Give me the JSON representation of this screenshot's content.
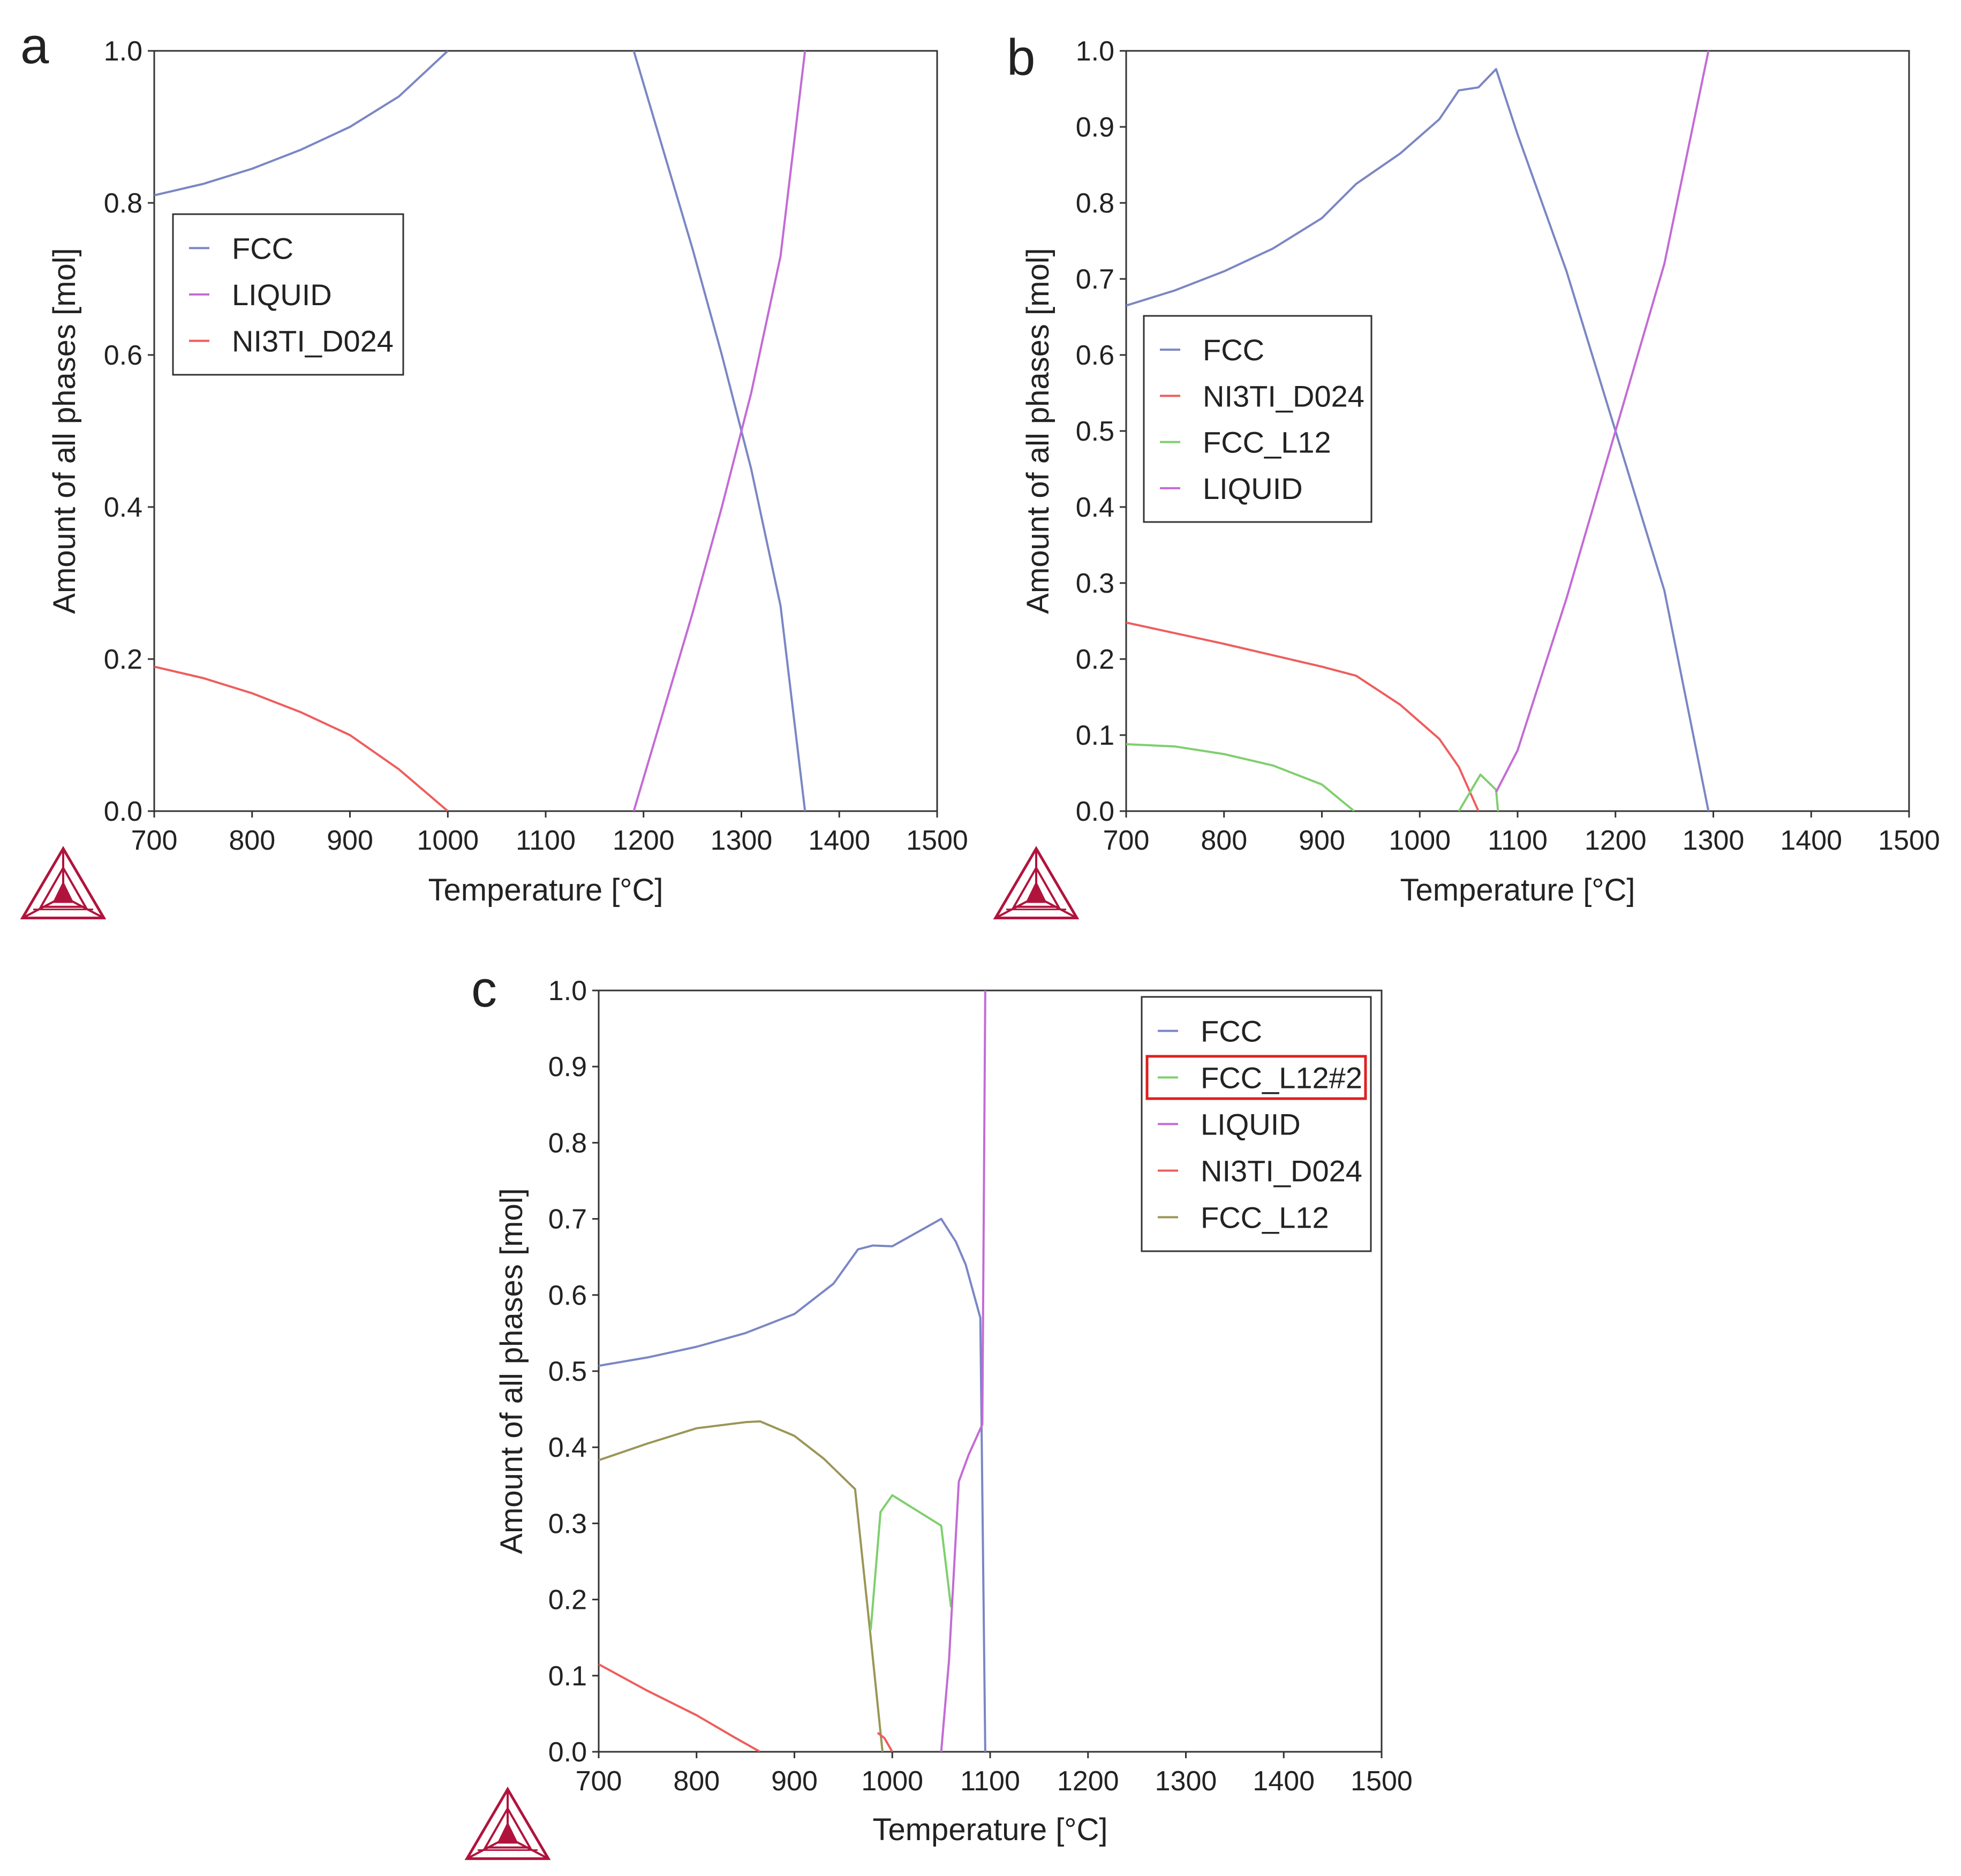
{
  "colors": {
    "FCC": "#7a86c4",
    "LIQUID": "#c36bd6",
    "NI3TI_D024": "#ee5d5d",
    "FCC_L12": "#7fcf6e",
    "FCC_L12_c": "#9a9656",
    "FCC_L12#2": "#7fcf6e",
    "axis": "#333333",
    "highlight": "#e02020",
    "logo": "#b0143c"
  },
  "chart_data": [
    {
      "panel": "a",
      "type": "line",
      "xlabel": "Temperature [°C]",
      "ylabel": "Amount of all phases [mol]",
      "xlim": [
        700,
        1500
      ],
      "ylim": [
        0,
        1.0
      ],
      "xticks": [
        "700",
        "800",
        "900",
        "1000",
        "1100",
        "1200",
        "1300",
        "1400",
        "1500"
      ],
      "yticks": [
        "0.0",
        "0.2",
        "0.4",
        "0.6",
        "0.8",
        "1.0"
      ],
      "legend": {
        "position": "left-middle",
        "entries": [
          "FCC",
          "LIQUID",
          "NI3TI_D024"
        ]
      },
      "series": [
        {
          "name": "FCC",
          "points": [
            [
              700,
              0.81
            ],
            [
              750,
              0.825
            ],
            [
              800,
              0.845
            ],
            [
              850,
              0.87
            ],
            [
              900,
              0.9
            ],
            [
              950,
              0.94
            ],
            [
              1000,
              1.0
            ]
          ]
        },
        {
          "name": "FCC",
          "points": [
            [
              1190,
              1.0
            ],
            [
              1220,
              0.87
            ],
            [
              1250,
              0.74
            ],
            [
              1280,
              0.6
            ],
            [
              1310,
              0.45
            ],
            [
              1340,
              0.27
            ],
            [
              1365,
              0.0
            ]
          ]
        },
        {
          "name": "LIQUID",
          "points": [
            [
              1190,
              0.0
            ],
            [
              1220,
              0.13
            ],
            [
              1250,
              0.26
            ],
            [
              1280,
              0.4
            ],
            [
              1310,
              0.55
            ],
            [
              1340,
              0.73
            ],
            [
              1365,
              1.0
            ]
          ]
        },
        {
          "name": "NI3TI_D024",
          "points": [
            [
              700,
              0.19
            ],
            [
              750,
              0.175
            ],
            [
              800,
              0.155
            ],
            [
              850,
              0.13
            ],
            [
              900,
              0.1
            ],
            [
              950,
              0.055
            ],
            [
              1000,
              0.0
            ]
          ]
        }
      ]
    },
    {
      "panel": "b",
      "type": "line",
      "xlabel": "Temperature [°C]",
      "ylabel": "Amount of all phases [mol]",
      "xlim": [
        700,
        1500
      ],
      "ylim": [
        0,
        1.0
      ],
      "xticks": [
        "700",
        "800",
        "900",
        "1000",
        "1100",
        "1200",
        "1300",
        "1400",
        "1500"
      ],
      "yticks": [
        "0.0",
        "0.1",
        "0.2",
        "0.3",
        "0.4",
        "0.5",
        "0.6",
        "0.7",
        "0.8",
        "0.9",
        "1.0"
      ],
      "legend": {
        "position": "left-middle",
        "entries": [
          "FCC",
          "NI3TI_D024",
          "FCC_L12",
          "LIQUID"
        ]
      },
      "series": [
        {
          "name": "FCC",
          "points": [
            [
              700,
              0.665
            ],
            [
              750,
              0.685
            ],
            [
              800,
              0.71
            ],
            [
              850,
              0.74
            ],
            [
              900,
              0.78
            ],
            [
              935,
              0.825
            ],
            [
              980,
              0.865
            ],
            [
              1020,
              0.91
            ],
            [
              1040,
              0.948
            ],
            [
              1060,
              0.952
            ],
            [
              1078,
              0.976
            ],
            [
              1100,
              0.89
            ],
            [
              1150,
              0.71
            ],
            [
              1200,
              0.5
            ],
            [
              1250,
              0.29
            ],
            [
              1295,
              0.0
            ]
          ]
        },
        {
          "name": "NI3TI_D024",
          "points": [
            [
              700,
              0.248
            ],
            [
              800,
              0.22
            ],
            [
              900,
              0.19
            ],
            [
              935,
              0.178
            ],
            [
              980,
              0.14
            ],
            [
              1020,
              0.095
            ],
            [
              1040,
              0.058
            ],
            [
              1060,
              0.0
            ]
          ]
        },
        {
          "name": "FCC_L12",
          "points": [
            [
              700,
              0.088
            ],
            [
              750,
              0.085
            ],
            [
              800,
              0.075
            ],
            [
              850,
              0.06
            ],
            [
              900,
              0.035
            ],
            [
              933,
              0.0
            ]
          ]
        },
        {
          "name": "FCC_L12",
          "points": [
            [
              1040,
              0.0
            ],
            [
              1062,
              0.048
            ],
            [
              1078,
              0.028
            ],
            [
              1080,
              0.0
            ]
          ]
        },
        {
          "name": "LIQUID",
          "points": [
            [
              1078,
              0.025
            ],
            [
              1100,
              0.08
            ],
            [
              1150,
              0.28
            ],
            [
              1200,
              0.5
            ],
            [
              1250,
              0.72
            ],
            [
              1295,
              1.0
            ]
          ]
        }
      ]
    },
    {
      "panel": "c",
      "type": "line",
      "xlabel": "Temperature [°C]",
      "ylabel": "Amount of all phases [mol]",
      "xlim": [
        700,
        1500
      ],
      "ylim": [
        0,
        1.0
      ],
      "xticks": [
        "700",
        "800",
        "900",
        "1000",
        "1100",
        "1200",
        "1300",
        "1400",
        "1500"
      ],
      "yticks": [
        "0.0",
        "0.1",
        "0.2",
        "0.3",
        "0.4",
        "0.5",
        "0.6",
        "0.7",
        "0.8",
        "0.9",
        "1.0"
      ],
      "legend": {
        "position": "top-right",
        "entries": [
          "FCC",
          "FCC_L12#2",
          "LIQUID",
          "NI3TI_D024",
          "FCC_L12"
        ],
        "highlighted": "FCC_L12#2"
      },
      "series": [
        {
          "name": "FCC",
          "points": [
            [
              700,
              0.507
            ],
            [
              750,
              0.518
            ],
            [
              800,
              0.532
            ],
            [
              850,
              0.55
            ],
            [
              900,
              0.575
            ],
            [
              940,
              0.615
            ],
            [
              965,
              0.66
            ],
            [
              980,
              0.665
            ],
            [
              1000,
              0.664
            ],
            [
              1050,
              0.7
            ],
            [
              1065,
              0.67
            ],
            [
              1075,
              0.64
            ],
            [
              1090,
              0.57
            ],
            [
              1095,
              0.0
            ]
          ]
        },
        {
          "name": "FCC_L12",
          "points": [
            [
              700,
              0.383
            ],
            [
              750,
              0.405
            ],
            [
              800,
              0.425
            ],
            [
              850,
              0.433
            ],
            [
              865,
              0.434
            ],
            [
              900,
              0.415
            ],
            [
              930,
              0.385
            ],
            [
              962,
              0.345
            ],
            [
              978,
              0.15
            ],
            [
              990,
              0.0
            ]
          ]
        },
        {
          "name": "FCC_L12#2",
          "points": [
            [
              978,
              0.16
            ],
            [
              988,
              0.315
            ],
            [
              1000,
              0.337
            ],
            [
              1050,
              0.297
            ],
            [
              1060,
              0.19
            ]
          ]
        },
        {
          "name": "NI3TI_D024",
          "points": [
            [
              700,
              0.115
            ],
            [
              750,
              0.08
            ],
            [
              800,
              0.048
            ],
            [
              840,
              0.018
            ],
            [
              865,
              0.0
            ]
          ]
        },
        {
          "name": "NI3TI_D024",
          "points": [
            [
              985,
              0.025
            ],
            [
              992,
              0.018
            ],
            [
              1000,
              0.0
            ]
          ]
        },
        {
          "name": "LIQUID",
          "points": [
            [
              1050,
              0.0
            ],
            [
              1058,
              0.12
            ],
            [
              1068,
              0.355
            ],
            [
              1078,
              0.39
            ],
            [
              1092,
              0.43
            ],
            [
              1095,
              1.0
            ]
          ]
        }
      ]
    }
  ]
}
